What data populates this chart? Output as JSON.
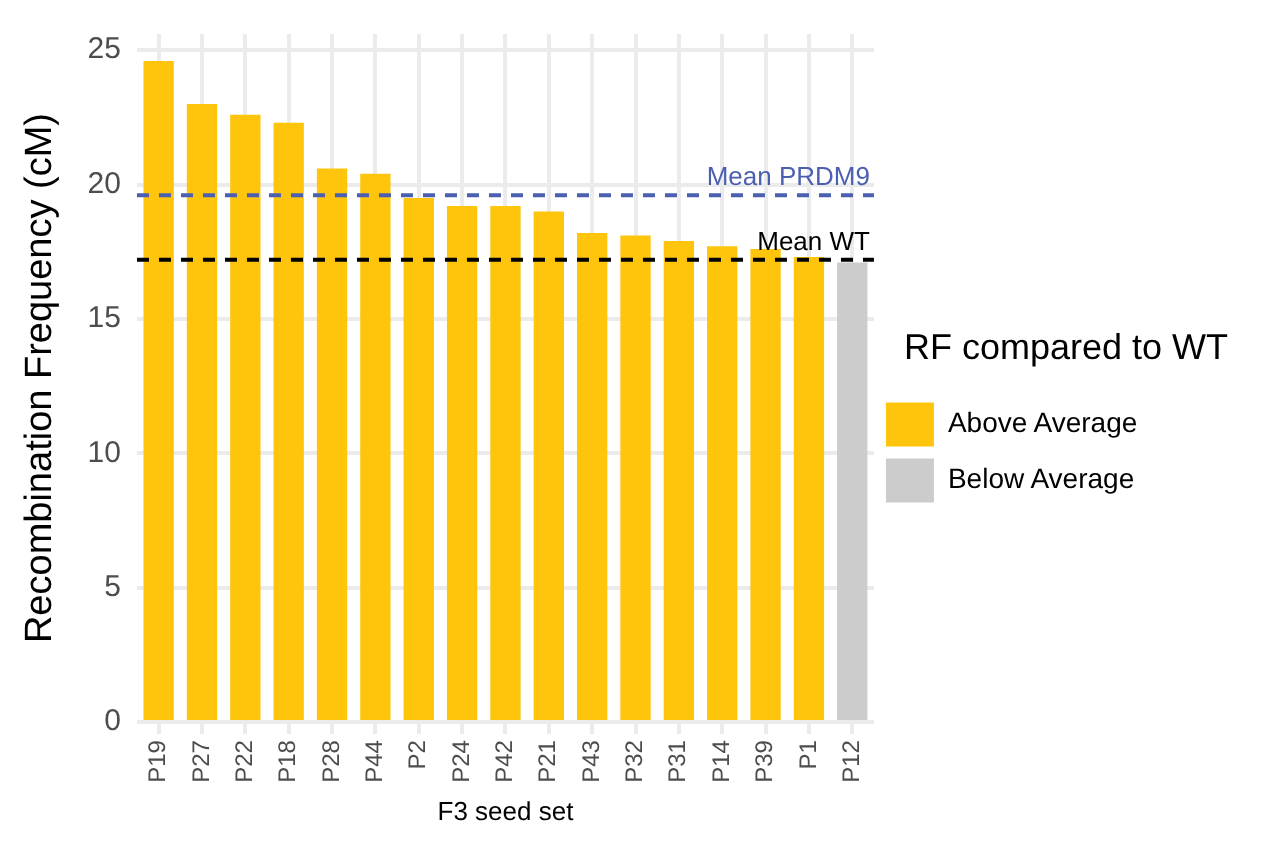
{
  "chart_data": {
    "type": "bar",
    "xlabel": "F3 seed set",
    "ylabel": "Recombination Frequency (cM)",
    "legend_title": "RF compared to WT",
    "categories": [
      "P19",
      "P27",
      "P22",
      "P18",
      "P28",
      "P44",
      "P2",
      "P24",
      "P42",
      "P21",
      "P43",
      "P32",
      "P31",
      "P14",
      "P39",
      "P1",
      "P12"
    ],
    "series": [
      {
        "name": "Above Average",
        "color": "#fec50c",
        "values": [
          24.6,
          23.0,
          22.6,
          22.3,
          20.6,
          20.4,
          19.5,
          19.2,
          19.2,
          19.0,
          18.2,
          18.1,
          17.9,
          17.7,
          17.6,
          17.3,
          null
        ]
      },
      {
        "name": "Below Average",
        "color": "#cccccc",
        "values": [
          null,
          null,
          null,
          null,
          null,
          null,
          null,
          null,
          null,
          null,
          null,
          null,
          null,
          null,
          null,
          null,
          17.1
        ]
      }
    ],
    "ylim": [
      0,
      25.6
    ],
    "yticks": [
      0,
      5,
      10,
      15,
      20,
      25
    ],
    "grid": true,
    "legend": "right",
    "ref_lines": [
      {
        "axis": "y",
        "value": 19.6,
        "label": "Mean PRDM9",
        "color": "#4a5fb0",
        "line_style": "dashed"
      },
      {
        "axis": "y",
        "value": 17.2,
        "label": "Mean WT",
        "color": "#000000",
        "line_style": "dashed"
      }
    ]
  }
}
